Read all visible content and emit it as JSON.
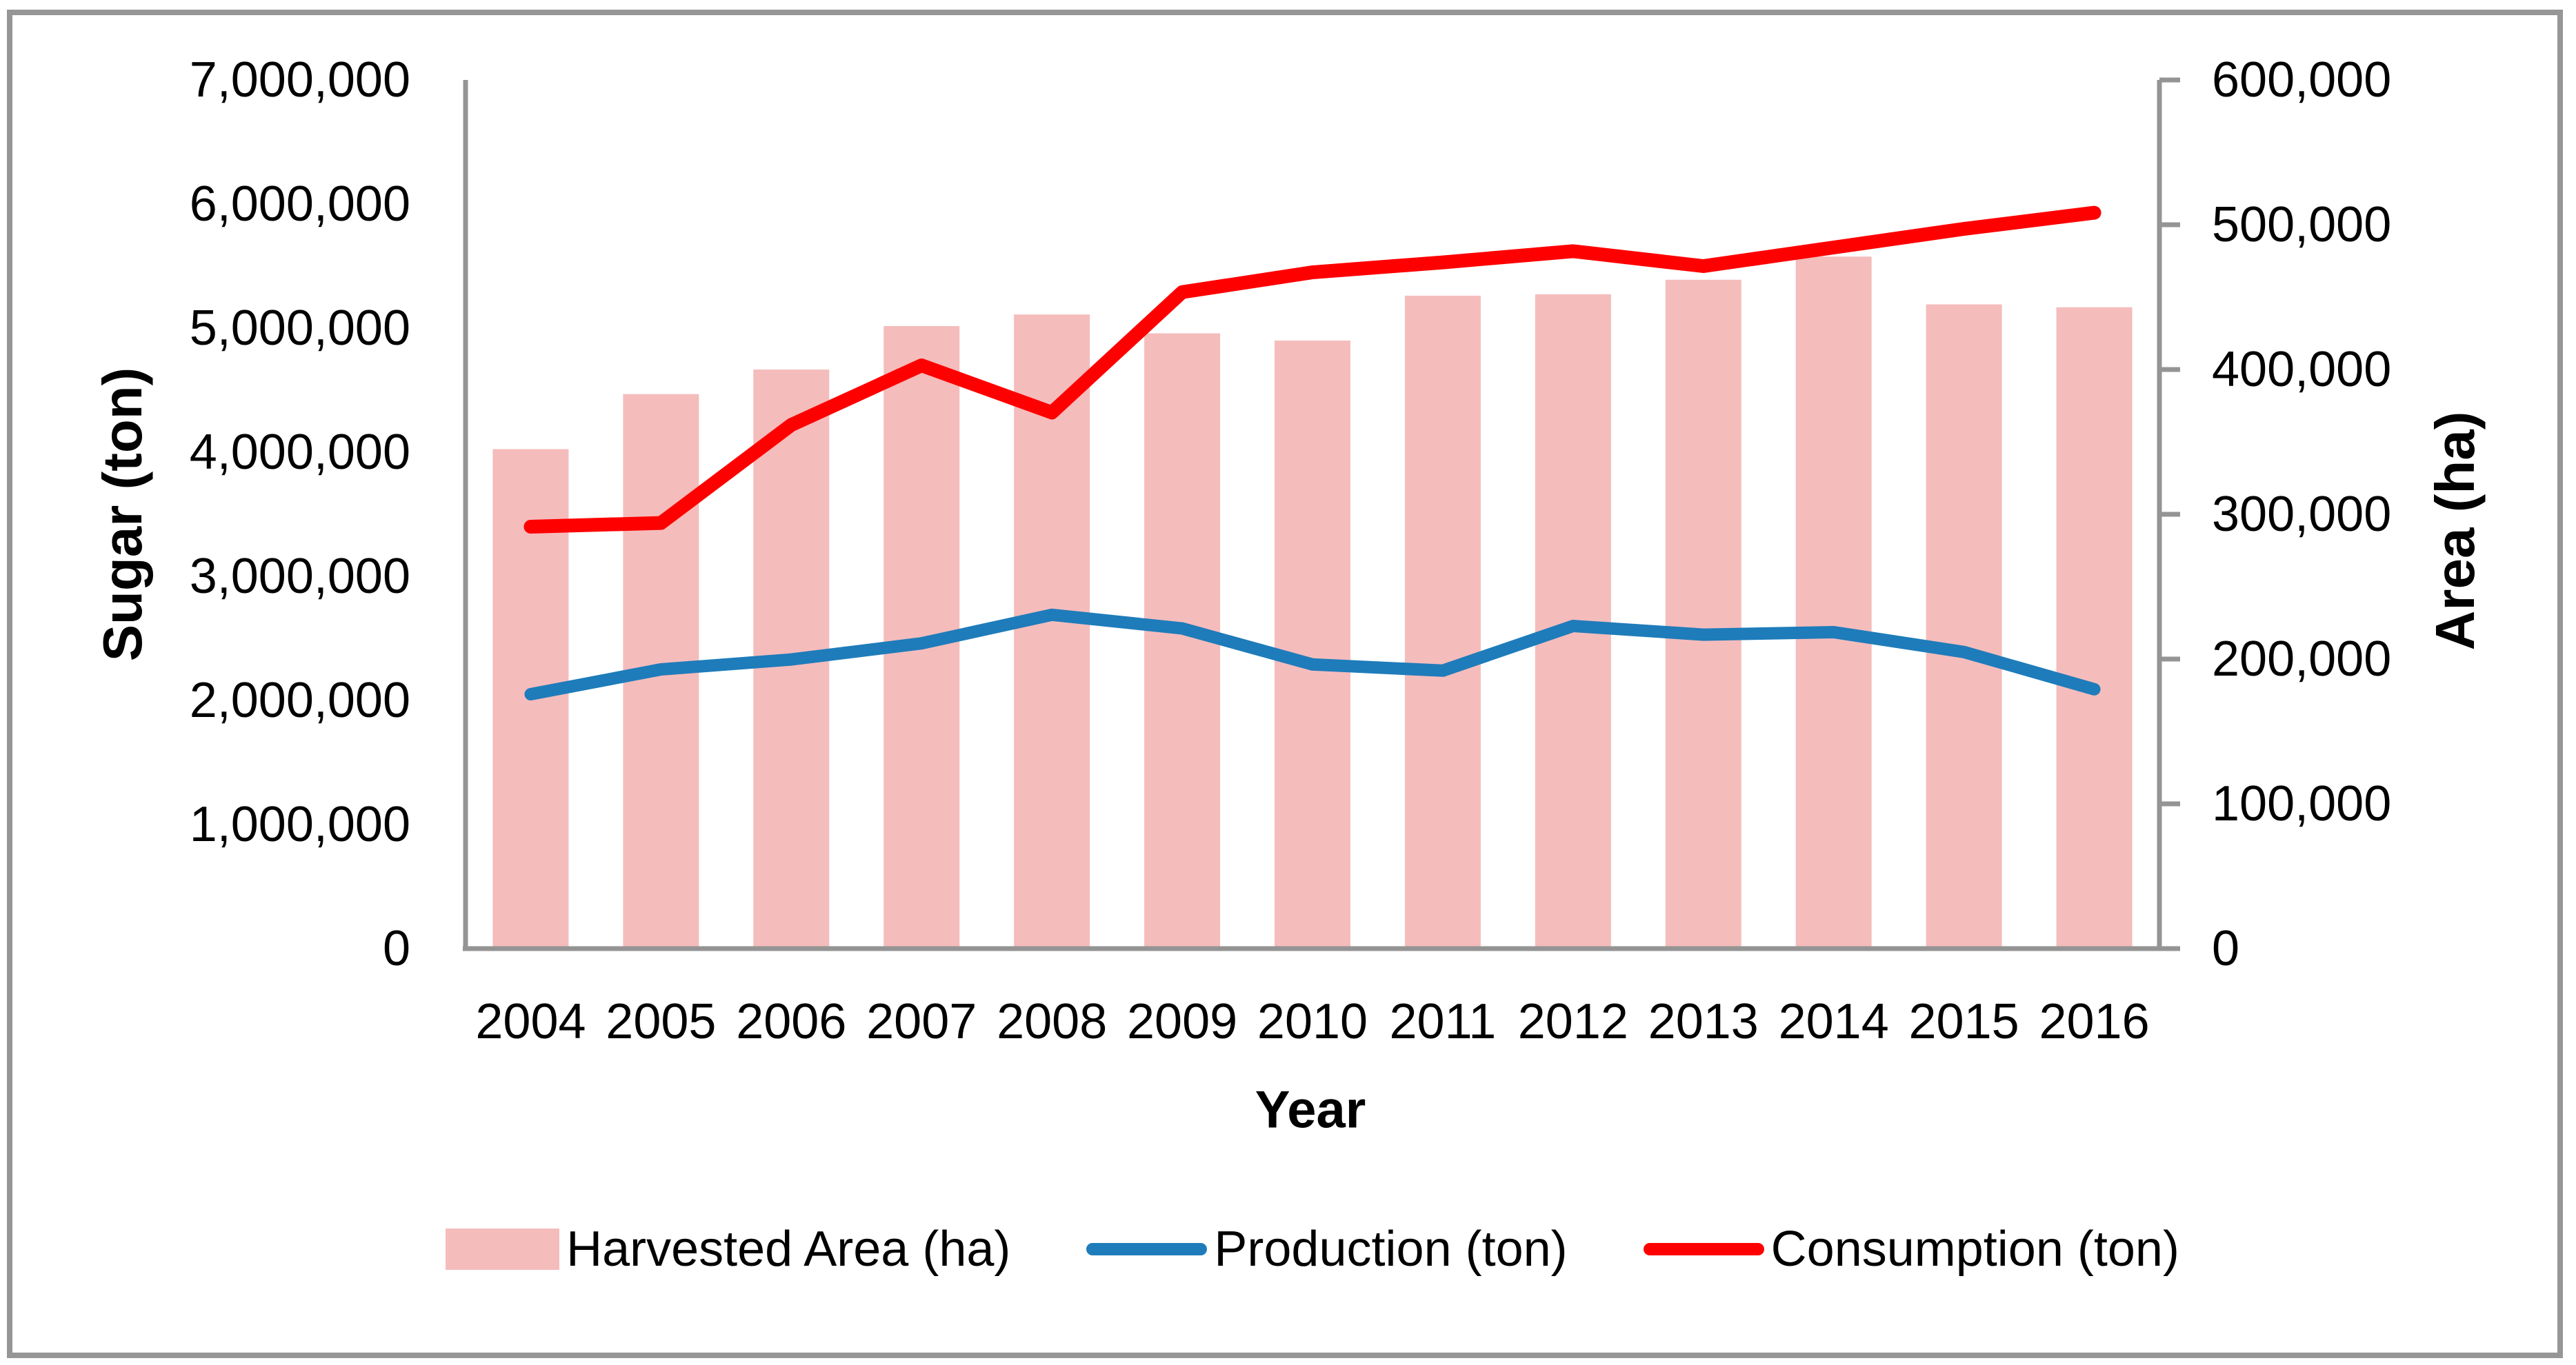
{
  "chart_data": {
    "type": "combo-bar-line",
    "title": "",
    "categories": [
      "2004",
      "2005",
      "2006",
      "2007",
      "2008",
      "2009",
      "2010",
      "2011",
      "2012",
      "2013",
      "2014",
      "2015",
      "2016"
    ],
    "series": [
      {
        "name": "Harvested Area (ha)",
        "type": "bar",
        "axis": "right",
        "color": "#F5BCBC",
        "values": [
          345000,
          383000,
          400000,
          430000,
          438000,
          425000,
          420000,
          451000,
          452000,
          462000,
          478000,
          445000,
          443000
        ]
      },
      {
        "name": "Production (ton)",
        "type": "line",
        "axis": "left",
        "color": "#1E7CBA",
        "values": [
          2050000,
          2250000,
          2330000,
          2460000,
          2690000,
          2580000,
          2290000,
          2240000,
          2600000,
          2530000,
          2550000,
          2390000,
          2090000
        ]
      },
      {
        "name": "Consumption (ton)",
        "type": "line",
        "axis": "left",
        "color": "#FE0000",
        "values": [
          3400000,
          3430000,
          4220000,
          4700000,
          4320000,
          5290000,
          5450000,
          5530000,
          5620000,
          5500000,
          5650000,
          5800000,
          5930000
        ]
      }
    ],
    "left_axis": {
      "title": "Sugar (ton)",
      "min": 0,
      "max": 7000000,
      "step": 1000000
    },
    "right_axis": {
      "title": "Area (ha)",
      "min": 0,
      "max": 600000,
      "step": 100000
    },
    "x_axis": {
      "title": "Year"
    },
    "legend_position": "bottom",
    "grid": false
  },
  "colors": {
    "axis": "#949494",
    "border": "#969696",
    "text": "#000000"
  }
}
